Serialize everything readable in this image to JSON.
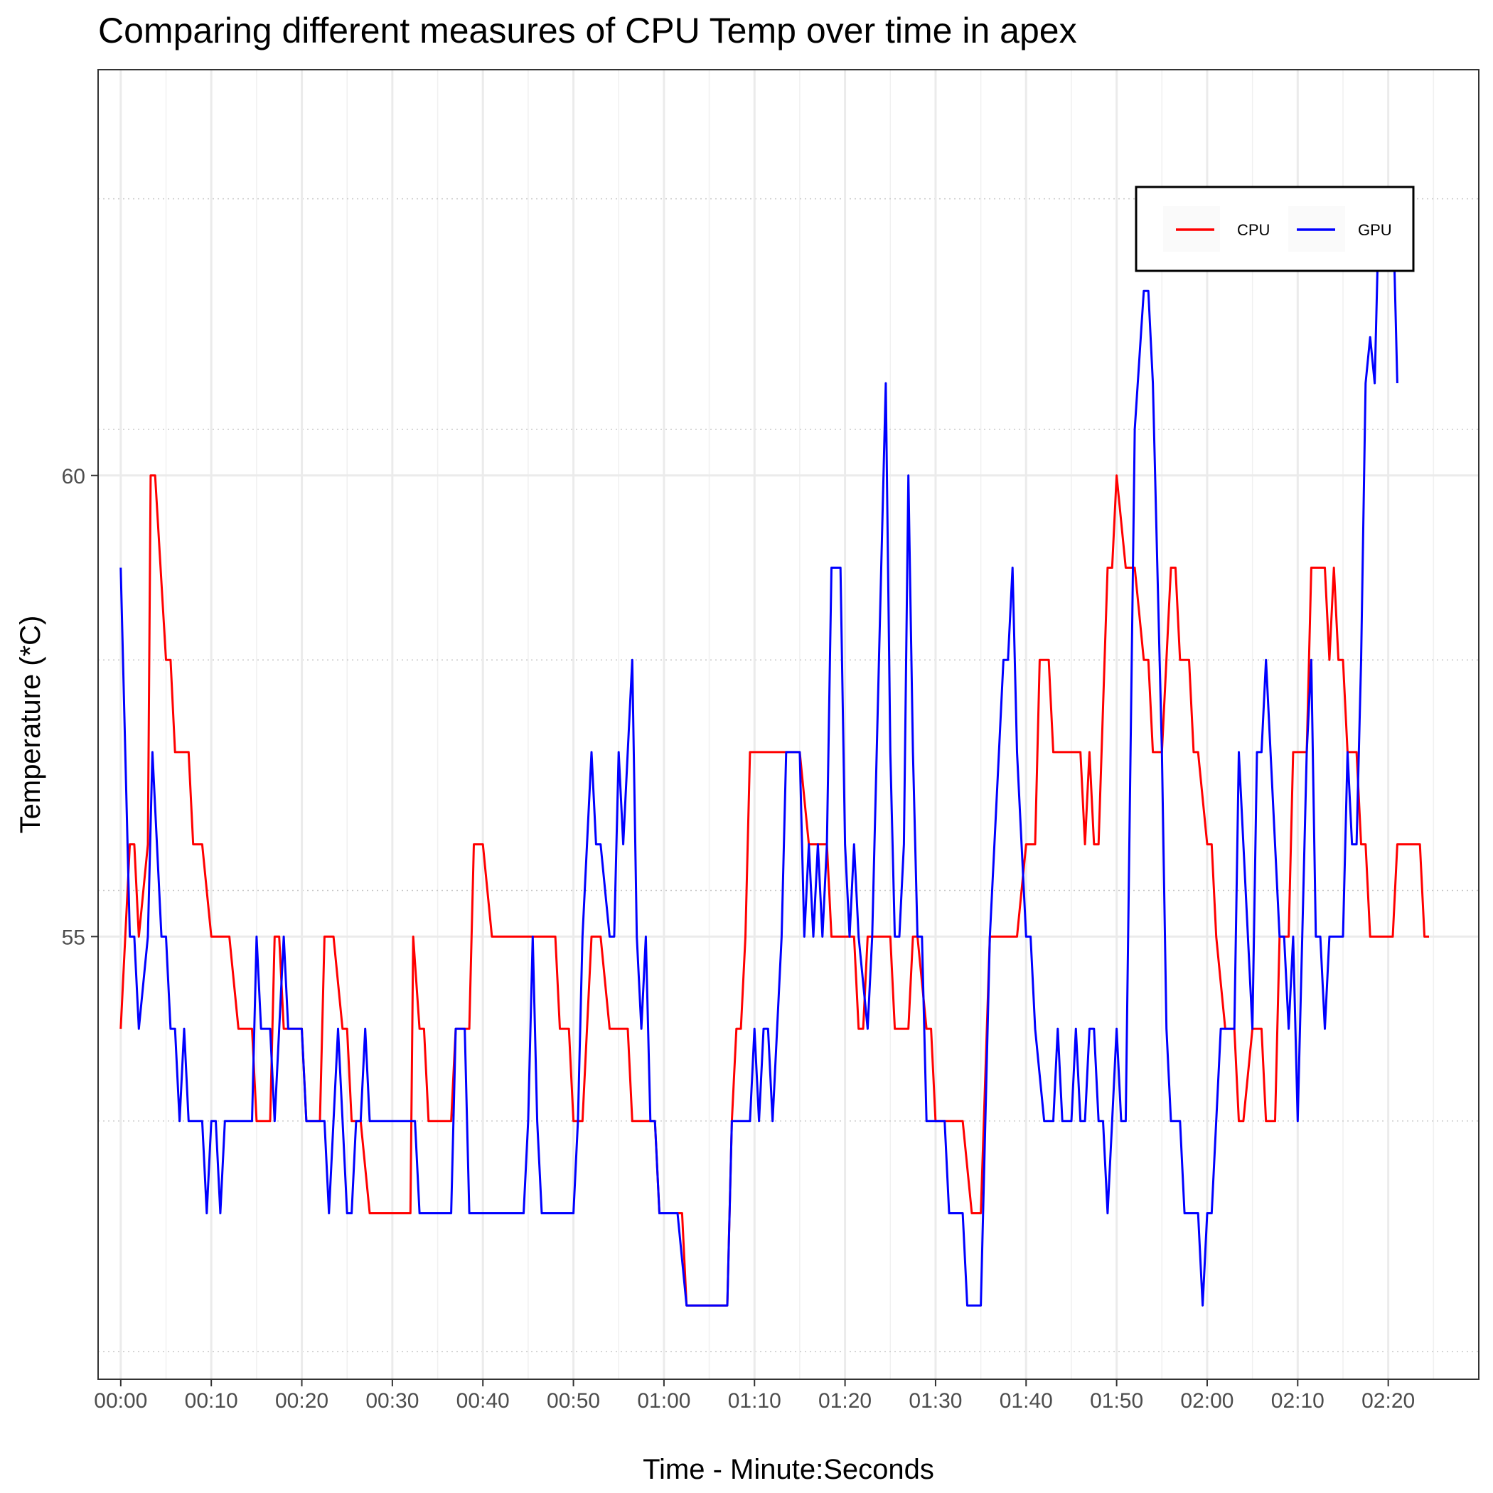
{
  "chart_data": {
    "type": "line",
    "title": "Comparing different measures of CPU Temp over time in apex",
    "xlabel": "Time - Minute:Seconds",
    "ylabel": "Temperature (*C)",
    "x_unit": "seconds",
    "xlim": [
      -2.5,
      150
    ],
    "ylim": [
      50.2,
      64.4
    ],
    "x_ticks": [
      0,
      10,
      20,
      30,
      40,
      50,
      60,
      70,
      80,
      90,
      100,
      110,
      120,
      130,
      140
    ],
    "x_tick_labels": [
      "00:00",
      "00:10",
      "00:20",
      "00:30",
      "00:40",
      "00:50",
      "01:00",
      "01:10",
      "01:20",
      "01:30",
      "01:40",
      "01:50",
      "02:00",
      "02:10",
      "02:20"
    ],
    "y_ticks": [
      55,
      60
    ],
    "y_tick_labels": [
      "55",
      "60"
    ],
    "grid": "major solid, minor dotted",
    "legend": {
      "position": "top-right",
      "entries": [
        "CPU",
        "GPU"
      ]
    },
    "series": [
      {
        "name": "CPU",
        "color": "#ff0000",
        "points": [
          [
            0,
            54
          ],
          [
            1,
            56
          ],
          [
            1.5,
            56
          ],
          [
            2,
            55
          ],
          [
            3,
            56
          ],
          [
            3.3,
            60
          ],
          [
            3.8,
            60
          ],
          [
            5,
            58
          ],
          [
            5.5,
            58
          ],
          [
            6,
            57
          ],
          [
            7.5,
            57
          ],
          [
            8,
            56
          ],
          [
            9,
            56
          ],
          [
            10,
            55
          ],
          [
            12,
            55
          ],
          [
            13,
            54
          ],
          [
            14.5,
            54
          ],
          [
            15,
            53
          ],
          [
            16.5,
            53
          ],
          [
            17,
            55
          ],
          [
            17.5,
            55
          ],
          [
            18,
            54
          ],
          [
            20,
            54
          ],
          [
            20.5,
            53
          ],
          [
            22,
            53
          ],
          [
            22.5,
            55
          ],
          [
            23.5,
            55
          ],
          [
            24.5,
            54
          ],
          [
            25,
            54
          ],
          [
            25.5,
            53
          ],
          [
            26.5,
            53
          ],
          [
            27.5,
            52
          ],
          [
            32,
            52
          ],
          [
            32.3,
            55
          ],
          [
            33,
            54
          ],
          [
            33.5,
            54
          ],
          [
            34,
            53
          ],
          [
            36.5,
            53
          ],
          [
            37,
            54
          ],
          [
            38.5,
            54
          ],
          [
            39,
            56
          ],
          [
            40,
            56
          ],
          [
            41,
            55
          ],
          [
            48,
            55
          ],
          [
            48.5,
            54
          ],
          [
            49.5,
            54
          ],
          [
            50,
            53
          ],
          [
            51,
            53
          ],
          [
            52,
            55
          ],
          [
            53,
            55
          ],
          [
            54,
            54
          ],
          [
            56,
            54
          ],
          [
            56.5,
            53
          ],
          [
            59,
            53
          ],
          [
            59.5,
            52
          ],
          [
            62,
            52
          ],
          [
            62.5,
            51
          ],
          [
            67,
            51
          ],
          [
            67.5,
            53
          ],
          [
            68,
            54
          ],
          [
            68.5,
            54
          ],
          [
            69,
            55
          ],
          [
            69.5,
            57
          ],
          [
            75,
            57
          ],
          [
            76,
            56
          ],
          [
            78,
            56
          ],
          [
            78.5,
            55
          ],
          [
            81,
            55
          ],
          [
            81.5,
            54
          ],
          [
            82,
            54
          ],
          [
            82.5,
            55
          ],
          [
            85,
            55
          ],
          [
            85.5,
            54
          ],
          [
            87,
            54
          ],
          [
            87.5,
            55
          ],
          [
            88,
            55
          ],
          [
            89,
            54
          ],
          [
            89.5,
            54
          ],
          [
            90,
            53
          ],
          [
            93,
            53
          ],
          [
            94,
            52
          ],
          [
            95,
            52
          ],
          [
            96,
            55
          ],
          [
            99,
            55
          ],
          [
            100,
            56
          ],
          [
            101,
            56
          ],
          [
            101.5,
            58
          ],
          [
            102.5,
            58
          ],
          [
            103,
            57
          ],
          [
            106,
            57
          ],
          [
            106.5,
            56
          ],
          [
            107,
            57
          ],
          [
            107.5,
            56
          ],
          [
            108,
            56
          ],
          [
            109,
            59
          ],
          [
            109.5,
            59
          ],
          [
            110,
            60
          ],
          [
            111,
            59
          ],
          [
            112,
            59
          ],
          [
            113,
            58
          ],
          [
            113.5,
            58
          ],
          [
            114,
            57
          ],
          [
            115,
            57
          ],
          [
            116,
            59
          ],
          [
            116.5,
            59
          ],
          [
            117,
            58
          ],
          [
            118,
            58
          ],
          [
            118.5,
            57
          ],
          [
            119,
            57
          ],
          [
            120,
            56
          ],
          [
            120.5,
            56
          ],
          [
            121,
            55
          ],
          [
            122,
            54
          ],
          [
            123,
            54
          ],
          [
            123.5,
            53
          ],
          [
            124,
            53
          ],
          [
            125,
            54
          ],
          [
            126,
            54
          ],
          [
            126.5,
            53
          ],
          [
            127.5,
            53
          ],
          [
            128,
            55
          ],
          [
            129,
            55
          ],
          [
            129.5,
            57
          ],
          [
            131,
            57
          ],
          [
            131.5,
            59
          ],
          [
            133,
            59
          ],
          [
            133.5,
            58
          ],
          [
            134,
            59
          ],
          [
            134.5,
            58
          ],
          [
            135,
            58
          ],
          [
            135.5,
            57
          ],
          [
            136.5,
            57
          ],
          [
            137,
            56
          ],
          [
            137.5,
            56
          ],
          [
            138,
            55
          ],
          [
            140.5,
            55
          ],
          [
            141,
            56
          ],
          [
            143.5,
            56
          ],
          [
            144,
            55
          ],
          [
            144.5,
            55
          ]
        ]
      },
      {
        "name": "GPU",
        "color": "#0000ff",
        "points": [
          [
            0,
            59
          ],
          [
            1,
            55
          ],
          [
            1.5,
            55
          ],
          [
            2,
            54
          ],
          [
            3,
            55
          ],
          [
            3.5,
            57
          ],
          [
            4.5,
            55
          ],
          [
            5,
            55
          ],
          [
            5.5,
            54
          ],
          [
            6,
            54
          ],
          [
            6.5,
            53
          ],
          [
            7,
            54
          ],
          [
            7.5,
            53
          ],
          [
            9,
            53
          ],
          [
            9.5,
            52
          ],
          [
            10,
            53
          ],
          [
            10.5,
            53
          ],
          [
            11,
            52
          ],
          [
            11.5,
            53
          ],
          [
            14.5,
            53
          ],
          [
            15,
            55
          ],
          [
            15.5,
            54
          ],
          [
            16.5,
            54
          ],
          [
            17,
            53
          ],
          [
            18,
            55
          ],
          [
            18.5,
            54
          ],
          [
            20,
            54
          ],
          [
            20.5,
            53
          ],
          [
            22.5,
            53
          ],
          [
            23,
            52
          ],
          [
            23.5,
            53
          ],
          [
            24,
            54
          ],
          [
            25,
            52
          ],
          [
            25.5,
            52
          ],
          [
            26,
            53
          ],
          [
            26.5,
            53
          ],
          [
            27,
            54
          ],
          [
            27.5,
            53
          ],
          [
            32.5,
            53
          ],
          [
            33,
            52
          ],
          [
            36.5,
            52
          ],
          [
            37,
            54
          ],
          [
            38,
            54
          ],
          [
            38.5,
            52
          ],
          [
            44.5,
            52
          ],
          [
            45,
            53
          ],
          [
            45.5,
            55
          ],
          [
            46,
            53
          ],
          [
            46.5,
            52
          ],
          [
            50,
            52
          ],
          [
            50.5,
            53
          ],
          [
            51,
            55
          ],
          [
            52,
            57
          ],
          [
            52.5,
            56
          ],
          [
            53,
            56
          ],
          [
            54,
            55
          ],
          [
            54.5,
            55
          ],
          [
            55,
            57
          ],
          [
            55.5,
            56
          ],
          [
            56.5,
            58
          ],
          [
            57,
            55
          ],
          [
            57.5,
            54
          ],
          [
            58,
            55
          ],
          [
            58.5,
            53
          ],
          [
            59,
            53
          ],
          [
            59.5,
            52
          ],
          [
            61.5,
            52
          ],
          [
            62.5,
            51
          ],
          [
            67,
            51
          ],
          [
            67.5,
            53
          ],
          [
            69.5,
            53
          ],
          [
            70,
            54
          ],
          [
            70.5,
            53
          ],
          [
            71,
            54
          ],
          [
            71.5,
            54
          ],
          [
            72,
            53
          ],
          [
            73,
            55
          ],
          [
            73.5,
            57
          ],
          [
            75,
            57
          ],
          [
            75.5,
            55
          ],
          [
            76,
            56
          ],
          [
            76.5,
            55
          ],
          [
            77,
            56
          ],
          [
            77.5,
            55
          ],
          [
            78,
            56
          ],
          [
            78.5,
            59
          ],
          [
            79.5,
            59
          ],
          [
            80,
            56
          ],
          [
            80.5,
            55
          ],
          [
            81,
            56
          ],
          [
            81.5,
            55
          ],
          [
            82.5,
            54
          ],
          [
            83,
            55
          ],
          [
            84,
            59
          ],
          [
            84.5,
            61
          ],
          [
            85,
            57
          ],
          [
            85.5,
            55
          ],
          [
            86,
            55
          ],
          [
            86.5,
            56
          ],
          [
            87,
            60
          ],
          [
            87.5,
            57
          ],
          [
            88,
            55
          ],
          [
            88.5,
            55
          ],
          [
            89,
            53
          ],
          [
            91,
            53
          ],
          [
            91.5,
            52
          ],
          [
            93,
            52
          ],
          [
            93.5,
            51
          ],
          [
            95,
            51
          ],
          [
            96,
            55
          ],
          [
            97,
            57
          ],
          [
            97.5,
            58
          ],
          [
            98,
            58
          ],
          [
            98.5,
            59
          ],
          [
            99,
            57
          ],
          [
            100,
            55
          ],
          [
            100.5,
            55
          ],
          [
            101,
            54
          ],
          [
            102,
            53
          ],
          [
            103,
            53
          ],
          [
            103.5,
            54
          ],
          [
            104,
            53
          ],
          [
            105,
            53
          ],
          [
            105.5,
            54
          ],
          [
            106,
            53
          ],
          [
            106.5,
            53
          ],
          [
            107,
            54
          ],
          [
            107.5,
            54
          ],
          [
            108,
            53
          ],
          [
            108.5,
            53
          ],
          [
            109,
            52
          ],
          [
            109.5,
            53
          ],
          [
            110,
            54
          ],
          [
            110.5,
            53
          ],
          [
            111,
            53
          ],
          [
            112,
            60.5
          ],
          [
            113,
            62
          ],
          [
            113.5,
            62
          ],
          [
            114,
            61
          ],
          [
            114.5,
            59
          ],
          [
            115,
            57
          ],
          [
            115.5,
            54
          ],
          [
            116,
            53
          ],
          [
            117,
            53
          ],
          [
            117.5,
            52
          ],
          [
            119,
            52
          ],
          [
            119.5,
            51
          ],
          [
            120,
            52
          ],
          [
            120.5,
            52
          ],
          [
            121,
            53
          ],
          [
            121.5,
            54
          ],
          [
            123,
            54
          ],
          [
            123.5,
            57
          ],
          [
            124.5,
            55
          ],
          [
            125,
            54
          ],
          [
            125.5,
            57
          ],
          [
            126,
            57
          ],
          [
            126.5,
            58
          ],
          [
            127,
            57
          ],
          [
            128,
            55
          ],
          [
            128.5,
            55
          ],
          [
            129,
            54
          ],
          [
            129.5,
            55
          ],
          [
            130,
            53
          ],
          [
            130.5,
            55
          ],
          [
            131,
            57
          ],
          [
            131.5,
            58
          ],
          [
            132,
            55
          ],
          [
            132.5,
            55
          ],
          [
            133,
            54
          ],
          [
            133.5,
            55
          ],
          [
            135,
            55
          ],
          [
            135.5,
            57
          ],
          [
            136,
            56
          ],
          [
            136.5,
            56
          ],
          [
            137,
            58
          ],
          [
            137.5,
            61
          ],
          [
            138,
            61.5
          ],
          [
            138.5,
            61
          ],
          [
            139,
            63
          ],
          [
            140.5,
            63
          ],
          [
            141,
            61
          ]
        ]
      }
    ]
  }
}
